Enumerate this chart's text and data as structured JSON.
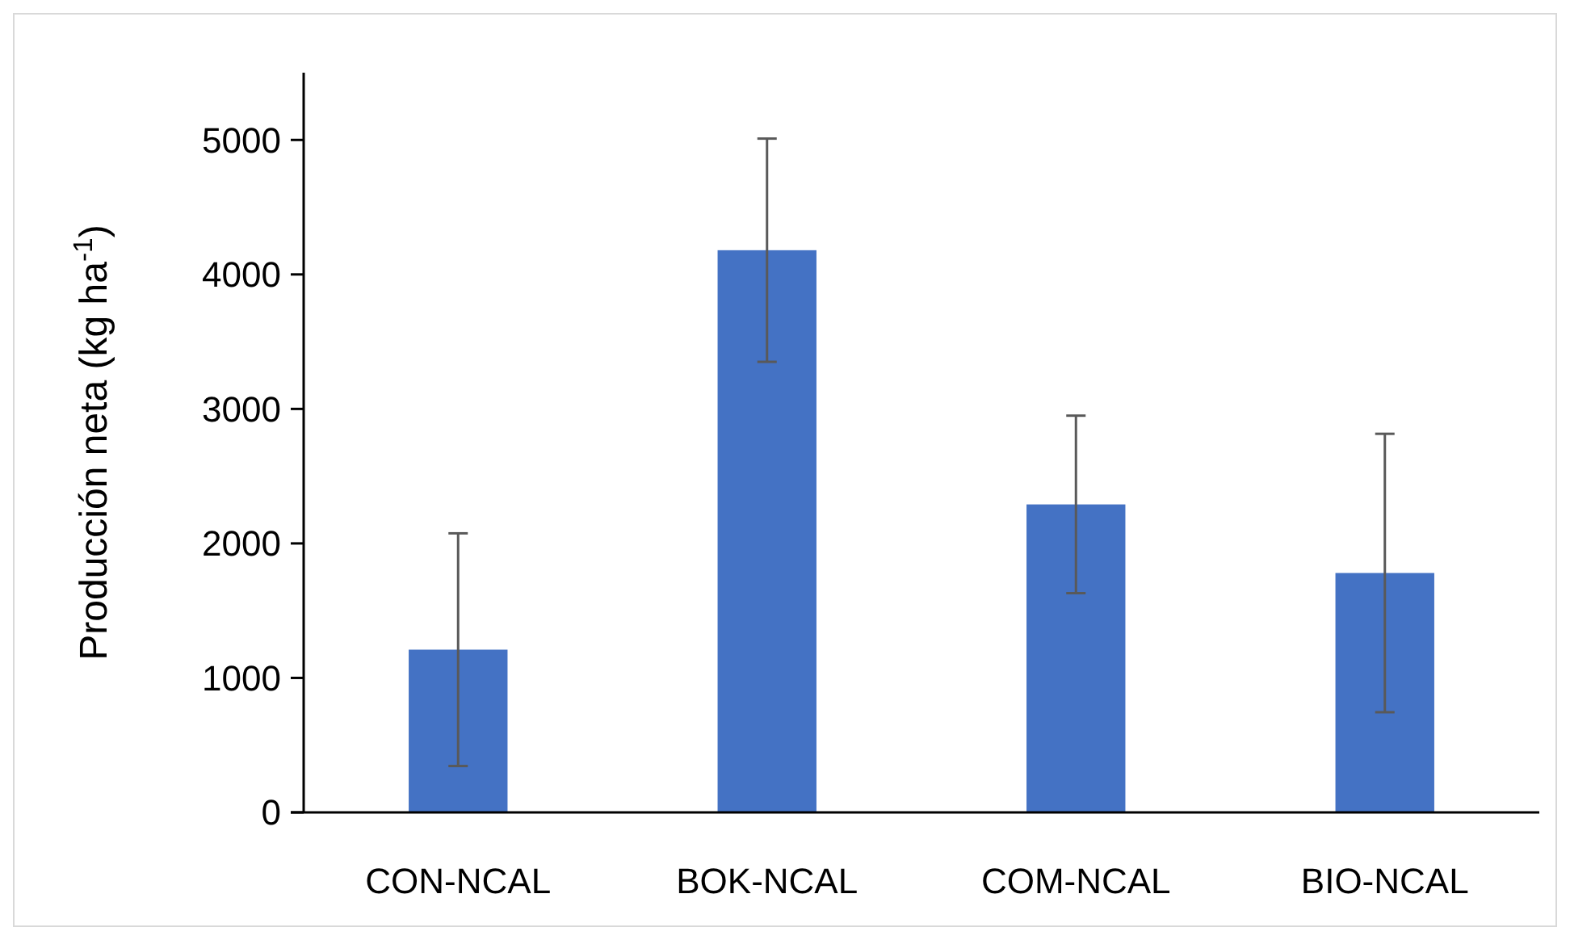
{
  "chart_data": {
    "type": "bar",
    "ylabel": "Producción neta (kg ha$^{-1}$)",
    "categories": [
      "CON-NCAL",
      "BOK-NCAL",
      "COM-NCAL",
      "BIO-NCAL"
    ],
    "values": [
      1210,
      4180,
      2290,
      1780
    ],
    "errors": [
      865,
      830,
      660,
      1035
    ],
    "color": "#4472c4",
    "ylim": [
      0,
      5500
    ],
    "yticks": [
      0,
      1000,
      2000,
      3000,
      4000,
      5000
    ],
    "grid": false
  }
}
